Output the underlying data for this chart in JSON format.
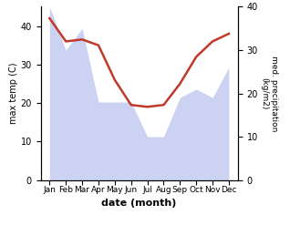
{
  "months": [
    "Jan",
    "Feb",
    "Mar",
    "Apr",
    "May",
    "Jun",
    "Jul",
    "Aug",
    "Sep",
    "Oct",
    "Nov",
    "Dec"
  ],
  "max_temp": [
    42,
    36,
    36.5,
    35,
    26,
    19.5,
    19,
    19.5,
    25,
    32,
    36,
    38
  ],
  "precipitation": [
    40,
    30,
    35,
    18,
    18,
    18,
    10,
    10,
    19,
    21,
    19,
    26
  ],
  "temp_color": "#c0392b",
  "precip_color": "#aab4e8",
  "precip_fill_alpha": 0.6,
  "temp_lw": 1.8,
  "ylabel_left": "max temp (C)",
  "ylabel_right": "med. precipitation\n(kg/m2)",
  "xlabel": "date (month)",
  "ylim_left": [
    0,
    45
  ],
  "ylim_right": [
    0,
    40
  ],
  "yticks_left": [
    0,
    10,
    20,
    30,
    40
  ],
  "yticks_right": [
    0,
    10,
    20,
    30,
    40
  ],
  "background_color": "#ffffff"
}
